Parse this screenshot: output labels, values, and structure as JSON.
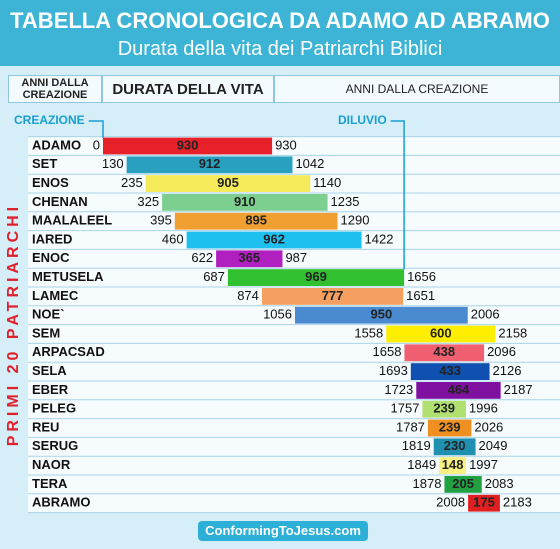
{
  "chart_data": {
    "type": "timeline",
    "title": "TABELLA CRONOLOGICA DA ADAMO AD ABRAMO",
    "subtitle": "Durata della vita dei Patriarchi Biblici",
    "headers": [
      "ANNI DALLA CREAZIONE",
      "DURATA DELLA VITA",
      "ANNI DALLA CREAZIONE"
    ],
    "side_label": "PRIMI 20 PATRIARCHI",
    "annotations": [
      {
        "label": "CREAZIONE",
        "x": 0
      },
      {
        "label": "DILUVIO",
        "x": 1656
      }
    ],
    "footer": "ConformingToJesus.com",
    "categories": [
      "ADAMO",
      "SET",
      "ENOS",
      "CHENAN",
      "MAALALEEL",
      "IARED",
      "ENOC",
      "METUSELA",
      "LAMEC",
      "NOE`",
      "SEM",
      "ARPACSAD",
      "SELA",
      "EBER",
      "PELEG",
      "REU",
      "SERUG",
      "NAOR",
      "TERA",
      "ABRAMO"
    ],
    "start": [
      0,
      130,
      235,
      325,
      395,
      460,
      622,
      687,
      874,
      1056,
      1558,
      1658,
      1693,
      1723,
      1757,
      1787,
      1819,
      1849,
      1878,
      2008
    ],
    "values": [
      930,
      912,
      905,
      910,
      895,
      962,
      365,
      969,
      777,
      950,
      600,
      438,
      433,
      464,
      239,
      239,
      230,
      148,
      205,
      175
    ],
    "end": [
      930,
      1042,
      1140,
      1235,
      1290,
      1422,
      987,
      1656,
      1651,
      2006,
      2158,
      2096,
      2126,
      2187,
      1996,
      2026,
      2049,
      1997,
      2083,
      2183
    ],
    "colors": [
      "#e8202a",
      "#2aa0c0",
      "#f5ea5a",
      "#7ccf8e",
      "#f0a030",
      "#1ec0f0",
      "#b020c0",
      "#30c030",
      "#f5a060",
      "#4a8ad0",
      "#ffee00",
      "#f06070",
      "#1050b0",
      "#8010a0",
      "#b0e070",
      "#f09020",
      "#2090b0",
      "#f8f080",
      "#20a040",
      "#e02020"
    ],
    "xlim": [
      0,
      2200
    ]
  }
}
